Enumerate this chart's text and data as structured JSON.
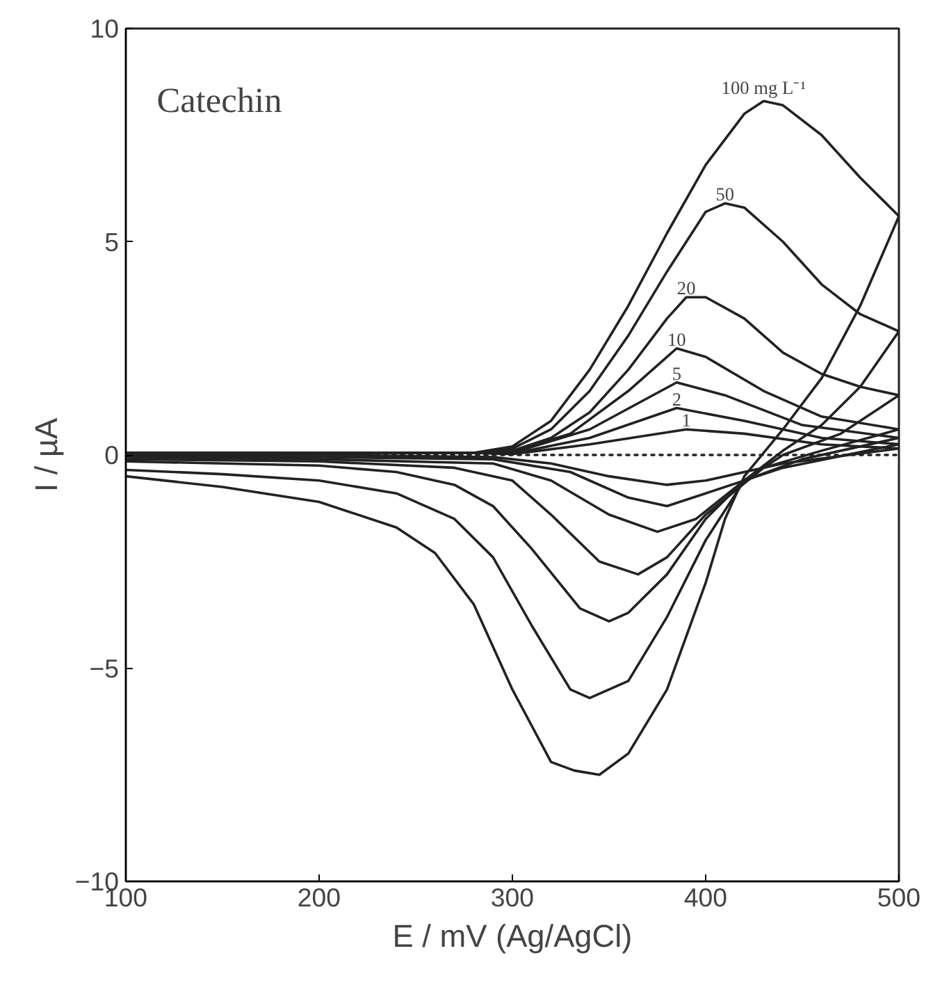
{
  "chart_data": {
    "type": "line",
    "xlabel": "E / mV (Ag/AgCl)",
    "ylabel": "I / µA",
    "xlim": [
      100,
      500
    ],
    "ylim": [
      -10,
      10
    ],
    "xticks": [
      100,
      200,
      300,
      400,
      500
    ],
    "yticks": [
      -10,
      -5,
      0,
      5,
      10
    ],
    "grid": false,
    "marker": "none",
    "line_style": "solid",
    "series": [
      {
        "color": "#222222",
        "line_style": "dotted",
        "x": [
          100,
          200,
          300,
          400,
          500
        ],
        "values": [
          0.0,
          0.0,
          0.0,
          0.0,
          0.0
        ]
      },
      {
        "name": "1",
        "color": "#222222",
        "x": [
          100,
          200,
          280,
          300,
          340,
          390,
          420,
          460,
          500,
          440,
          400,
          380,
          350,
          320,
          290,
          200,
          100
        ],
        "values": [
          0.05,
          0.05,
          0.05,
          0.02,
          0.25,
          0.6,
          0.5,
          0.25,
          0.15,
          -0.2,
          -0.6,
          -0.7,
          -0.5,
          -0.2,
          -0.05,
          0.0,
          0.0
        ]
      },
      {
        "name": "2",
        "color": "#222222",
        "x": [
          100,
          200,
          280,
          300,
          340,
          385,
          420,
          460,
          500,
          440,
          400,
          380,
          360,
          330,
          290,
          200,
          100
        ],
        "values": [
          0.05,
          0.05,
          0.05,
          0.03,
          0.4,
          1.1,
          0.8,
          0.4,
          0.25,
          -0.3,
          -0.9,
          -1.2,
          -1.0,
          -0.4,
          -0.1,
          -0.05,
          -0.03
        ]
      },
      {
        "name": "5",
        "color": "#222222",
        "x": [
          100,
          200,
          280,
          300,
          340,
          385,
          410,
          450,
          500,
          450,
          420,
          395,
          375,
          350,
          320,
          290,
          200,
          100
        ],
        "values": [
          0.05,
          0.05,
          0.05,
          0.05,
          0.6,
          1.7,
          1.4,
          0.7,
          0.4,
          -0.1,
          -0.6,
          -1.5,
          -1.8,
          -1.4,
          -0.6,
          -0.2,
          -0.1,
          -0.05
        ]
      },
      {
        "name": "10",
        "color": "#222222",
        "x": [
          100,
          200,
          280,
          300,
          330,
          360,
          385,
          400,
          430,
          460,
          500,
          460,
          430,
          400,
          380,
          365,
          345,
          320,
          300,
          270,
          200,
          100
        ],
        "values": [
          0.05,
          0.05,
          0.05,
          0.08,
          0.5,
          1.5,
          2.5,
          2.3,
          1.5,
          0.9,
          0.6,
          0.1,
          -0.3,
          -1.4,
          -2.4,
          -2.8,
          -2.5,
          -1.4,
          -0.6,
          -0.3,
          -0.15,
          -0.1
        ]
      },
      {
        "name": "20",
        "color": "#222222",
        "x": [
          100,
          200,
          280,
          300,
          320,
          340,
          360,
          380,
          390,
          400,
          420,
          440,
          460,
          480,
          500,
          470,
          440,
          420,
          400,
          380,
          360,
          350,
          335,
          310,
          290,
          270,
          240,
          200,
          100
        ],
        "values": [
          0.05,
          0.05,
          0.05,
          0.1,
          0.4,
          1.0,
          2.0,
          3.2,
          3.7,
          3.7,
          3.2,
          2.4,
          1.9,
          1.6,
          1.4,
          0.5,
          0.0,
          -0.6,
          -1.5,
          -2.8,
          -3.7,
          -3.9,
          -3.6,
          -2.2,
          -1.2,
          -0.7,
          -0.4,
          -0.25,
          -0.15
        ]
      },
      {
        "name": "50",
        "color": "#222222",
        "x": [
          100,
          200,
          280,
          300,
          320,
          340,
          360,
          380,
          400,
          410,
          420,
          440,
          460,
          480,
          500,
          480,
          460,
          440,
          420,
          400,
          380,
          360,
          340,
          330,
          310,
          290,
          270,
          240,
          200,
          150,
          100
        ],
        "values": [
          0.05,
          0.05,
          0.05,
          0.15,
          0.6,
          1.5,
          2.8,
          4.3,
          5.7,
          5.9,
          5.8,
          5.0,
          4.0,
          3.3,
          2.9,
          1.6,
          0.7,
          0.1,
          -0.6,
          -2.0,
          -3.8,
          -5.3,
          -5.7,
          -5.5,
          -4.0,
          -2.4,
          -1.5,
          -0.9,
          -0.6,
          -0.45,
          -0.35
        ]
      },
      {
        "name": "100 mg L⁻¹",
        "color": "#222222",
        "x": [
          100,
          200,
          280,
          300,
          320,
          340,
          360,
          380,
          400,
          420,
          430,
          440,
          460,
          480,
          500,
          480,
          460,
          440,
          420,
          410,
          400,
          380,
          360,
          345,
          332,
          320,
          300,
          280,
          260,
          240,
          200,
          150,
          100
        ],
        "values": [
          0.05,
          0.05,
          0.05,
          0.2,
          0.8,
          2.0,
          3.5,
          5.2,
          6.8,
          8.0,
          8.3,
          8.2,
          7.5,
          6.5,
          5.6,
          3.5,
          1.8,
          0.6,
          -0.5,
          -1.5,
          -3.0,
          -5.5,
          -7.0,
          -7.5,
          -7.4,
          -7.2,
          -5.5,
          -3.5,
          -2.3,
          -1.7,
          -1.1,
          -0.75,
          -0.5
        ]
      }
    ],
    "annotations": [
      "Catechin"
    ]
  }
}
